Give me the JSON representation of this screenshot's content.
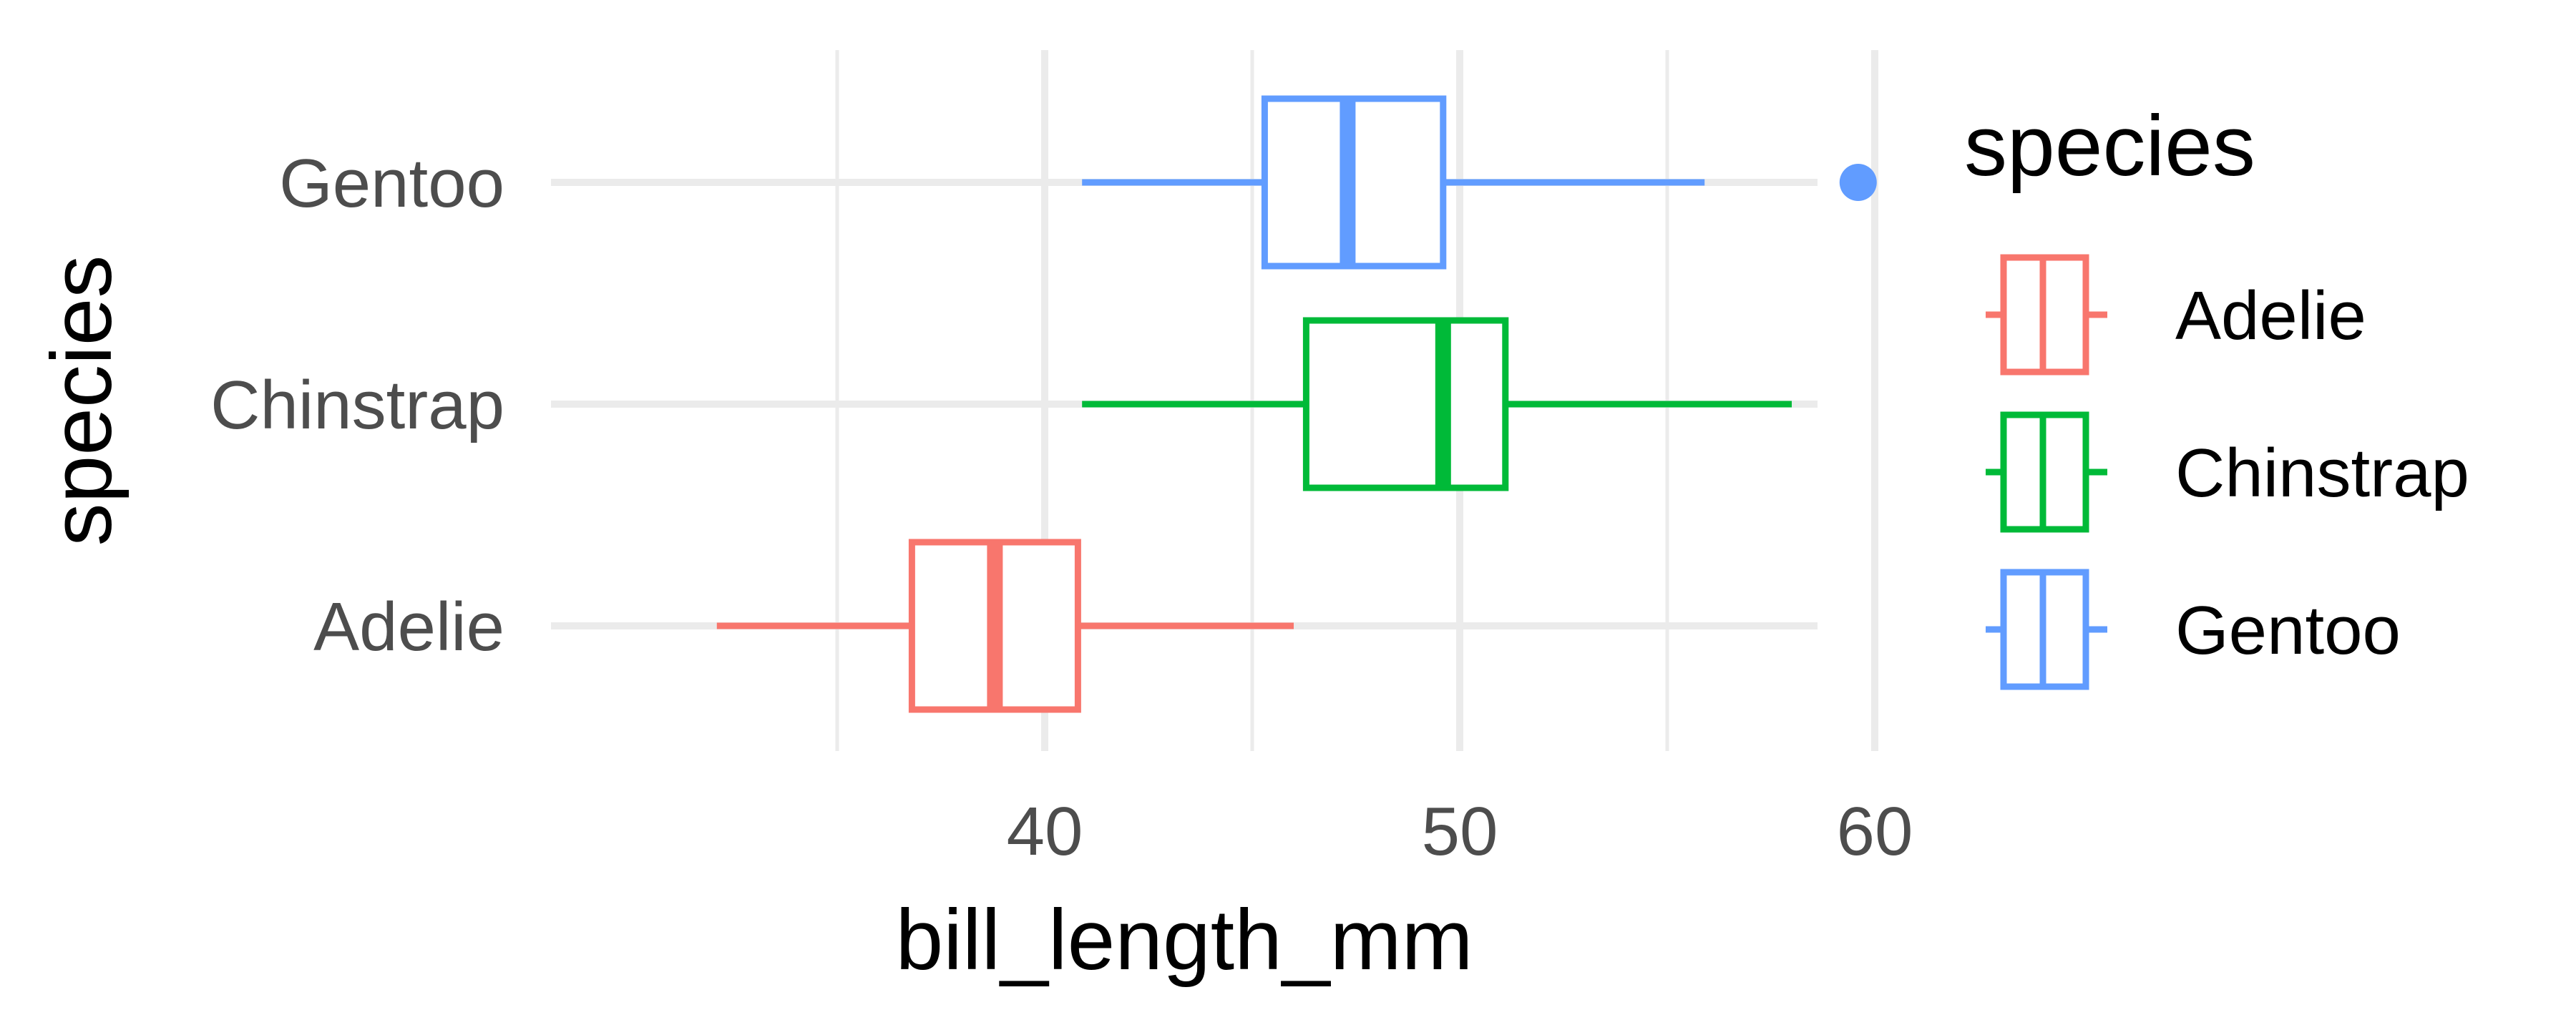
{
  "chart_data": {
    "type": "boxplot",
    "orientation": "horizontal",
    "xlabel": "bill_length_mm",
    "ylabel": "species",
    "xlim": [
      32,
      61
    ],
    "x_ticks": [
      40,
      50,
      60
    ],
    "x_minor_ticks": [
      35,
      45,
      55
    ],
    "grid": true,
    "legend": {
      "title": "species",
      "placement": "right"
    },
    "categories": [
      "Adelie",
      "Chinstrap",
      "Gentoo"
    ],
    "series": [
      {
        "name": "Adelie",
        "color": "#F8766D",
        "whisker_low": 32.1,
        "q1": 36.8,
        "median": 38.8,
        "q3": 40.8,
        "whisker_high": 46.0,
        "outliers": []
      },
      {
        "name": "Chinstrap",
        "color": "#00BA38",
        "whisker_low": 40.9,
        "q1": 46.3,
        "median": 49.6,
        "q3": 51.1,
        "whisker_high": 58.0,
        "outliers": []
      },
      {
        "name": "Gentoo",
        "color": "#619CFF",
        "whisker_low": 40.9,
        "q1": 45.3,
        "median": 47.3,
        "q3": 49.6,
        "whisker_high": 55.9,
        "outliers": [
          59.6
        ]
      }
    ]
  }
}
